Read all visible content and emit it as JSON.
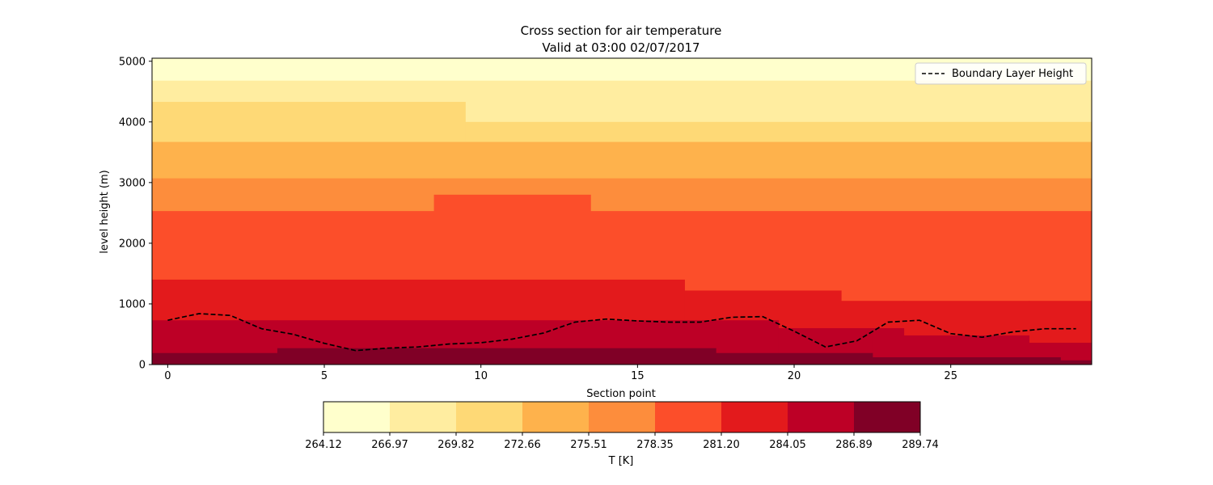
{
  "chart_data": {
    "type": "heatmap",
    "title": "Cross section for air temperature",
    "subtitle": "Valid at 03:00 02/07/2017",
    "xlabel": "Section point",
    "ylabel": "level height (m)",
    "xlim": [
      -0.5,
      29.5
    ],
    "ylim": [
      0,
      5000
    ],
    "x_ticks": [
      0,
      5,
      10,
      15,
      20,
      25
    ],
    "y_ticks": [
      0,
      1000,
      2000,
      3000,
      4000,
      5000
    ],
    "grid": false,
    "colorbar": {
      "label": "T [K]",
      "boundaries": [
        "264.12",
        "266.97",
        "269.82",
        "272.66",
        "275.51",
        "278.35",
        "281.20",
        "284.05",
        "286.89",
        "289.74"
      ],
      "colors": [
        "#ffffcc",
        "#ffeda0",
        "#fed976",
        "#feb24c",
        "#fd8d3c",
        "#fc4e2a",
        "#e31a1c",
        "#bd0026",
        "#800026"
      ]
    },
    "bands": [
      {
        "level": 0,
        "x0": -0.5,
        "x1": 17.5,
        "y0": 4680,
        "y1": 5050
      },
      {
        "level": 0,
        "x0": 17.5,
        "x1": 22.5,
        "y0": 4680,
        "y1": 5050
      },
      {
        "level": 0,
        "x0": 22.5,
        "x1": 29.5,
        "y0": 4680,
        "y1": 5050
      },
      {
        "level": 1,
        "x0": -0.5,
        "x1": 17.5,
        "y0": 4330,
        "y1": 4680
      },
      {
        "level": 1,
        "x0": 9.5,
        "x1": 17.5,
        "y0": 4000,
        "y1": 4330
      },
      {
        "level": 1,
        "x0": 17.5,
        "x1": 29.5,
        "y0": 4000,
        "y1": 4680
      },
      {
        "level": 2,
        "x0": -0.5,
        "x1": 9.5,
        "y0": 3670,
        "y1": 4330
      },
      {
        "level": 2,
        "x0": 9.5,
        "x1": 29.5,
        "y0": 3670,
        "y1": 4000
      },
      {
        "level": 3,
        "x0": -0.5,
        "x1": 29.5,
        "y0": 3070,
        "y1": 3670
      },
      {
        "level": 4,
        "x0": -0.5,
        "x1": 8.5,
        "y0": 2530,
        "y1": 3070
      },
      {
        "level": 4,
        "x0": 8.5,
        "x1": 13.5,
        "y0": 2800,
        "y1": 3070
      },
      {
        "level": 4,
        "x0": 13.5,
        "x1": 29.5,
        "y0": 2530,
        "y1": 3070
      },
      {
        "level": 5,
        "x0": -0.5,
        "x1": 8.5,
        "y0": 1400,
        "y1": 2530
      },
      {
        "level": 5,
        "x0": 8.5,
        "x1": 13.5,
        "y0": 1400,
        "y1": 2800
      },
      {
        "level": 5,
        "x0": 13.5,
        "x1": 16.5,
        "y0": 1400,
        "y1": 2530
      },
      {
        "level": 5,
        "x0": 16.5,
        "x1": 21.5,
        "y0": 1220,
        "y1": 2530
      },
      {
        "level": 5,
        "x0": 21.5,
        "x1": 29.5,
        "y0": 1050,
        "y1": 2530
      },
      {
        "level": 6,
        "x0": -0.5,
        "x1": 16.5,
        "y0": 730,
        "y1": 1400
      },
      {
        "level": 6,
        "x0": 16.5,
        "x1": 19.5,
        "y0": 730,
        "y1": 1220
      },
      {
        "level": 6,
        "x0": 19.5,
        "x1": 21.5,
        "y0": 600,
        "y1": 1220
      },
      {
        "level": 6,
        "x0": 21.5,
        "x1": 23.5,
        "y0": 600,
        "y1": 1050
      },
      {
        "level": 6,
        "x0": 23.5,
        "x1": 27.5,
        "y0": 480,
        "y1": 1050
      },
      {
        "level": 6,
        "x0": 27.5,
        "x1": 29.5,
        "y0": 360,
        "y1": 1050
      },
      {
        "level": 7,
        "x0": -0.5,
        "x1": 3.5,
        "y0": 190,
        "y1": 730
      },
      {
        "level": 7,
        "x0": 3.5,
        "x1": 17.5,
        "y0": 270,
        "y1": 730
      },
      {
        "level": 7,
        "x0": 17.5,
        "x1": 19.5,
        "y0": 190,
        "y1": 730
      },
      {
        "level": 7,
        "x0": 19.5,
        "x1": 22.5,
        "y0": 190,
        "y1": 600
      },
      {
        "level": 7,
        "x0": 22.5,
        "x1": 23.5,
        "y0": 120,
        "y1": 600
      },
      {
        "level": 7,
        "x0": 23.5,
        "x1": 27.5,
        "y0": 120,
        "y1": 480
      },
      {
        "level": 7,
        "x0": 27.5,
        "x1": 28.5,
        "y0": 120,
        "y1": 360
      },
      {
        "level": 7,
        "x0": 28.5,
        "x1": 29.5,
        "y0": 70,
        "y1": 360
      },
      {
        "level": 8,
        "x0": -0.5,
        "x1": 3.5,
        "y0": 0,
        "y1": 190
      },
      {
        "level": 8,
        "x0": 3.5,
        "x1": 17.5,
        "y0": 0,
        "y1": 270
      },
      {
        "level": 8,
        "x0": 17.5,
        "x1": 22.5,
        "y0": 0,
        "y1": 190
      },
      {
        "level": 8,
        "x0": 22.5,
        "x1": 28.5,
        "y0": 0,
        "y1": 120
      },
      {
        "level": 8,
        "x0": 28.5,
        "x1": 29.5,
        "y0": 0,
        "y1": 70
      }
    ],
    "series": [
      {
        "name": "Boundary Layer Height",
        "style": "dashed",
        "color": "#000000",
        "x": [
          0,
          1,
          2,
          3,
          4,
          5,
          6,
          7,
          8,
          9,
          10,
          11,
          12,
          13,
          14,
          15,
          16,
          17,
          18,
          19,
          20,
          21,
          22,
          23,
          24,
          25,
          26,
          27,
          28,
          29
        ],
        "values": [
          730,
          840,
          810,
          590,
          500,
          350,
          230,
          270,
          290,
          340,
          360,
          420,
          520,
          700,
          750,
          720,
          700,
          700,
          780,
          790,
          550,
          290,
          390,
          700,
          730,
          510,
          450,
          540,
          590,
          590
        ]
      }
    ],
    "legend": {
      "position": "top-right",
      "entries": [
        "Boundary Layer Height"
      ]
    }
  }
}
